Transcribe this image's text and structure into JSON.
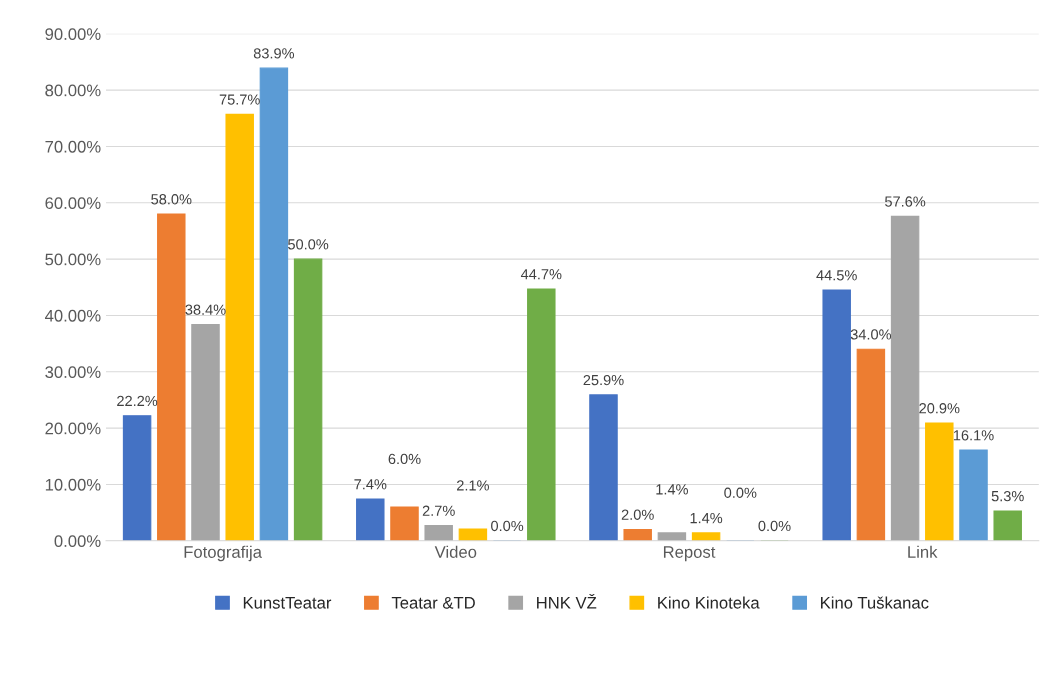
{
  "chart_data": {
    "type": "bar",
    "categories": [
      "Fotografija",
      "Video",
      "Repost",
      "Link"
    ],
    "series": [
      {
        "name": "KunstTeatar",
        "color": "#4472c4",
        "values": [
          22.2,
          7.4,
          25.9,
          44.5
        ],
        "value_labels": [
          "22.2%",
          "7.4%",
          "25.9%",
          "44.5%"
        ]
      },
      {
        "name": "Teatar &TD",
        "color": "#ed7d31",
        "values": [
          58.0,
          6.0,
          2.0,
          34.0
        ],
        "value_labels": [
          "58.0%",
          "6.0%",
          "2.0%",
          "34.0%"
        ]
      },
      {
        "name": "HNK VŽ",
        "color": "#a5a5a5",
        "values": [
          38.4,
          2.7,
          1.4,
          57.6
        ],
        "value_labels": [
          "38.4%",
          "2.7%",
          "1.4%",
          "57.6%"
        ]
      },
      {
        "name": "Kino Kinoteka",
        "color": "#ffc000",
        "values": [
          75.7,
          2.1,
          1.4,
          20.9
        ],
        "value_labels": [
          "75.7%",
          "2.1%",
          "1.4%",
          "20.9%"
        ]
      },
      {
        "name": "Kino Tuškanac",
        "color": "#5b9bd5",
        "values": [
          83.9,
          0.0,
          0.0,
          16.1
        ],
        "value_labels": [
          "83.9%",
          "0.0%",
          "0.0%",
          "16.1%"
        ]
      },
      {
        "color": "#70ad47",
        "values": [
          50.0,
          44.7,
          0.0,
          5.3
        ],
        "value_labels": [
          "50.0%",
          "44.7%",
          "0.0%",
          "5.3%"
        ]
      }
    ],
    "ylim": [
      0,
      90
    ],
    "yticks": [
      {
        "value": 0,
        "label": "0.00%"
      },
      {
        "value": 10,
        "label": "10.00%"
      },
      {
        "value": 20,
        "label": "20.00%"
      },
      {
        "value": 30,
        "label": "30.00%"
      },
      {
        "value": 40,
        "label": "40.00%"
      },
      {
        "value": 50,
        "label": "50.00%"
      },
      {
        "value": 60,
        "label": "60.00%"
      },
      {
        "value": 70,
        "label": "70.00%"
      },
      {
        "value": 80,
        "label": "80.00%"
      },
      {
        "value": 90,
        "label": "90.00%"
      }
    ],
    "grid": "y",
    "legend": "bottom"
  }
}
